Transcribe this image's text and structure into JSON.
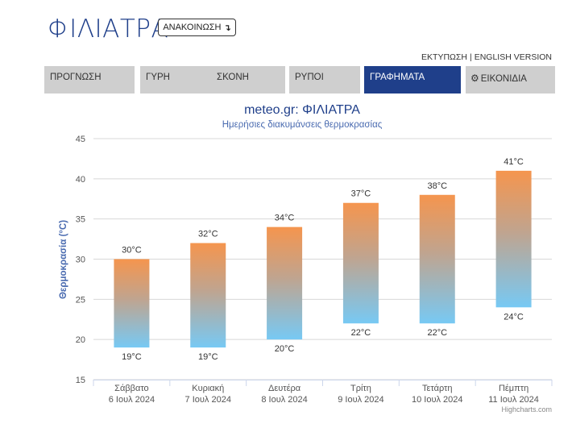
{
  "header": {
    "city": "ΦΙΛΙΑΤΡΑ",
    "announce_label": "ΑΝΑΚΟΙΝΩΣΗ",
    "announce_icon": "arrow-turn-down-icon",
    "print_label": "ΕΚΤΥΠΩΣΗ",
    "link_separator": "|",
    "english_label": "ENGLISH VERSION"
  },
  "tabs": [
    {
      "label": "ΠΡΟΓΝΩΣΗ",
      "active": false
    },
    {
      "label": "ΓΥΡΗ",
      "active": false
    },
    {
      "label": "ΣΚΟΝΗ",
      "active": false
    },
    {
      "label": "ΡΥΠΟΙ",
      "active": false
    },
    {
      "label": "ΓΡΑΦΗΜΑΤΑ",
      "active": true
    },
    {
      "label": "ΕΙΚΟΝΙΔΙΑ",
      "active": false,
      "icon": "gear-icon"
    }
  ],
  "colors": {
    "brand": "#1f3f8a",
    "tab_inactive": "#cfcfcf",
    "bar_top": "#f5954e",
    "bar_bottom": "#77c9f4"
  },
  "chart_data": {
    "type": "bar",
    "subtype": "columnrange",
    "title": "meteo.gr: ΦΙΛΙΑΤΡΑ",
    "subtitle": "Ημερήσιες διακυμάνσεις θερμοκρασίας",
    "ylabel": "Θερμοκρασία (°C)",
    "xlabel": "",
    "ylim": [
      15,
      45
    ],
    "yticks": [
      "15",
      "20",
      "25",
      "30",
      "35",
      "40",
      "45"
    ],
    "grid": true,
    "legend": "none",
    "unit": "°C",
    "categories": [
      {
        "day": "Σάββατο",
        "date": "6 Ιουλ 2024"
      },
      {
        "day": "Κυριακή",
        "date": "7 Ιουλ 2024"
      },
      {
        "day": "Δευτέρα",
        "date": "8 Ιουλ 2024"
      },
      {
        "day": "Τρίτη",
        "date": "9 Ιουλ 2024"
      },
      {
        "day": "Τετάρτη",
        "date": "10 Ιουλ 2024"
      },
      {
        "day": "Πέμπτη",
        "date": "11 Ιουλ 2024"
      }
    ],
    "series": [
      {
        "low": [
          19,
          19,
          20,
          22,
          22,
          24
        ],
        "high": [
          30,
          32,
          34,
          37,
          38,
          41
        ]
      }
    ],
    "credit": "Highcharts.com"
  }
}
